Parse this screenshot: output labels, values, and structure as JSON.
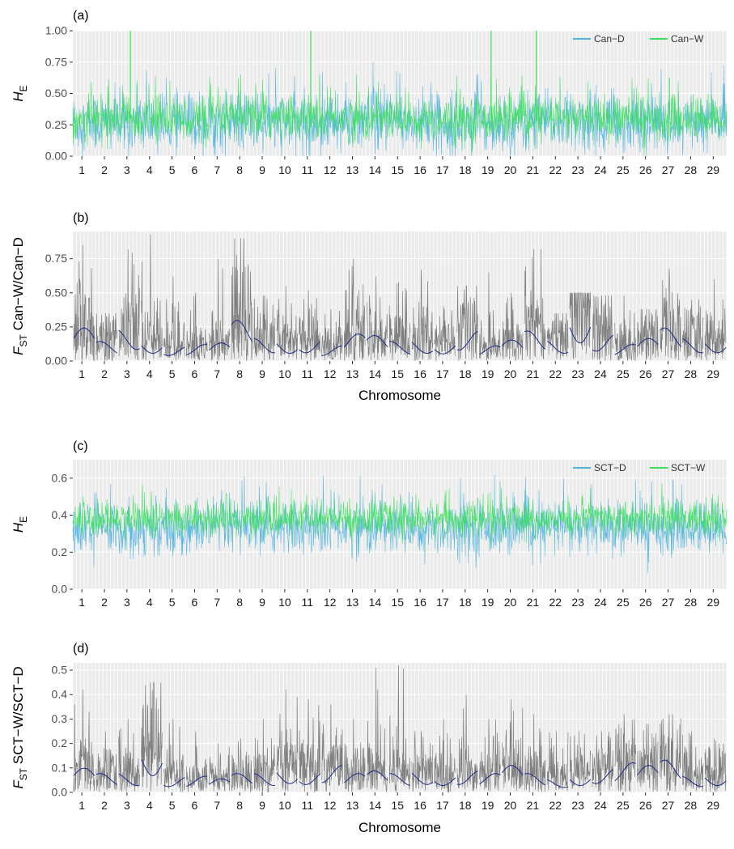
{
  "chart_data": [
    {
      "panel": "(a)",
      "type": "line",
      "ylabel": "H",
      "ylabel_sub": "E",
      "xlabel": "",
      "ylim": [
        0,
        1.0
      ],
      "yticks": [
        0,
        0.25,
        0.5,
        0.75,
        1.0
      ],
      "ytick_labels": [
        "0.00",
        "0.25",
        "0.50",
        "0.75",
        "1.00"
      ],
      "categories": [
        "1",
        "2",
        "3",
        "4",
        "5",
        "6",
        "7",
        "8",
        "9",
        "10",
        "11",
        "12",
        "13",
        "14",
        "15",
        "16",
        "17",
        "18",
        "19",
        "20",
        "21",
        "22",
        "23",
        "24",
        "25",
        "26",
        "27",
        "28",
        "29"
      ],
      "legend_position": "top-right",
      "series": [
        {
          "name": "Can−D",
          "color": "#4fb3e0",
          "baseline": 0.27,
          "spread": 0.2,
          "low": 0.0,
          "high": 0.8
        },
        {
          "name": "Can−W",
          "color": "#3be05a",
          "baseline": 0.3,
          "spread": 0.15,
          "low": 0.0,
          "high": 1.0
        }
      ],
      "peaks": [
        {
          "chromosome": "3",
          "series": "Can−W",
          "value": 1.0
        },
        {
          "chromosome": "11",
          "series": "Can−W",
          "value": 1.0
        },
        {
          "chromosome": "19",
          "series": "Can−W",
          "value": 1.0
        },
        {
          "chromosome": "21",
          "series": "Can−W",
          "value": 1.0
        }
      ]
    },
    {
      "panel": "(b)",
      "type": "line",
      "ylabel": "F",
      "ylabel_sub": "ST",
      "ylabel_rest": " Can−W/Can−D",
      "xlabel": "Chromosome",
      "ylim": [
        0,
        0.95
      ],
      "yticks": [
        0,
        0.25,
        0.5,
        0.75
      ],
      "ytick_labels": [
        "0.00",
        "0.25",
        "0.50",
        "0.75"
      ],
      "categories": [
        "1",
        "2",
        "3",
        "4",
        "5",
        "6",
        "7",
        "8",
        "9",
        "10",
        "11",
        "12",
        "13",
        "14",
        "15",
        "16",
        "17",
        "18",
        "19",
        "20",
        "21",
        "22",
        "23",
        "24",
        "25",
        "26",
        "27",
        "28",
        "29"
      ],
      "raw_color": "#7f7f7f",
      "smooth_color": "#1f2a8a",
      "smoothed_fst": [
        0.22,
        0.13,
        0.21,
        0.14,
        0.1,
        0.11,
        0.12,
        0.27,
        0.15,
        0.14,
        0.15,
        0.1,
        0.18,
        0.17,
        0.13,
        0.14,
        0.13,
        0.2,
        0.1,
        0.14,
        0.2,
        0.14,
        0.33,
        0.18,
        0.11,
        0.15,
        0.22,
        0.15,
        0.15
      ],
      "max_fst": [
        0.85,
        0.35,
        0.82,
        0.93,
        0.62,
        0.5,
        0.75,
        0.9,
        0.48,
        0.55,
        0.52,
        0.38,
        0.75,
        0.62,
        0.58,
        0.67,
        0.4,
        0.55,
        0.65,
        0.5,
        0.82,
        0.35,
        0.5,
        0.48,
        0.48,
        0.38,
        0.68,
        0.45,
        0.6
      ]
    },
    {
      "panel": "(c)",
      "type": "line",
      "ylabel": "H",
      "ylabel_sub": "E",
      "xlabel": "",
      "ylim": [
        0,
        0.7
      ],
      "yticks": [
        0,
        0.2,
        0.4,
        0.6
      ],
      "ytick_labels": [
        "0.0",
        "0.2",
        "0.4",
        "0.6"
      ],
      "categories": [
        "1",
        "2",
        "3",
        "4",
        "5",
        "6",
        "7",
        "8",
        "9",
        "10",
        "11",
        "12",
        "13",
        "14",
        "15",
        "16",
        "17",
        "18",
        "19",
        "20",
        "21",
        "22",
        "23",
        "24",
        "25",
        "26",
        "27",
        "28",
        "29"
      ],
      "legend_position": "top-right",
      "series": [
        {
          "name": "SCT−D",
          "color": "#4fb3e0",
          "baseline": 0.33,
          "spread": 0.12,
          "low": 0.0,
          "high": 0.7
        },
        {
          "name": "SCT−W",
          "color": "#3be05a",
          "baseline": 0.38,
          "spread": 0.08,
          "low": 0.1,
          "high": 0.62
        }
      ]
    },
    {
      "panel": "(d)",
      "type": "line",
      "ylabel": "F",
      "ylabel_sub": "ST",
      "ylabel_rest": " SCT−W/SCT−D",
      "xlabel": "Chromosome",
      "ylim": [
        0,
        0.53
      ],
      "yticks": [
        0,
        0.1,
        0.2,
        0.3,
        0.4,
        0.5
      ],
      "ytick_labels": [
        "0.0",
        "0.1",
        "0.2",
        "0.3",
        "0.4",
        "0.5"
      ],
      "categories": [
        "1",
        "2",
        "3",
        "4",
        "5",
        "6",
        "7",
        "8",
        "9",
        "10",
        "11",
        "12",
        "13",
        "14",
        "15",
        "16",
        "17",
        "18",
        "19",
        "20",
        "21",
        "22",
        "23",
        "24",
        "25",
        "26",
        "27",
        "28",
        "29"
      ],
      "raw_color": "#7f7f7f",
      "smooth_color": "#1f2a8a",
      "smoothed_fst": [
        0.09,
        0.07,
        0.07,
        0.17,
        0.06,
        0.06,
        0.05,
        0.07,
        0.07,
        0.09,
        0.08,
        0.1,
        0.07,
        0.08,
        0.07,
        0.08,
        0.07,
        0.08,
        0.07,
        0.1,
        0.07,
        0.05,
        0.07,
        0.09,
        0.11,
        0.1,
        0.12,
        0.06,
        0.07
      ],
      "max_fst": [
        0.42,
        0.25,
        0.3,
        0.45,
        0.3,
        0.25,
        0.2,
        0.22,
        0.3,
        0.42,
        0.38,
        0.36,
        0.3,
        0.51,
        0.52,
        0.25,
        0.3,
        0.4,
        0.3,
        0.38,
        0.32,
        0.25,
        0.25,
        0.25,
        0.32,
        0.28,
        0.32,
        0.25,
        0.22
      ]
    }
  ]
}
